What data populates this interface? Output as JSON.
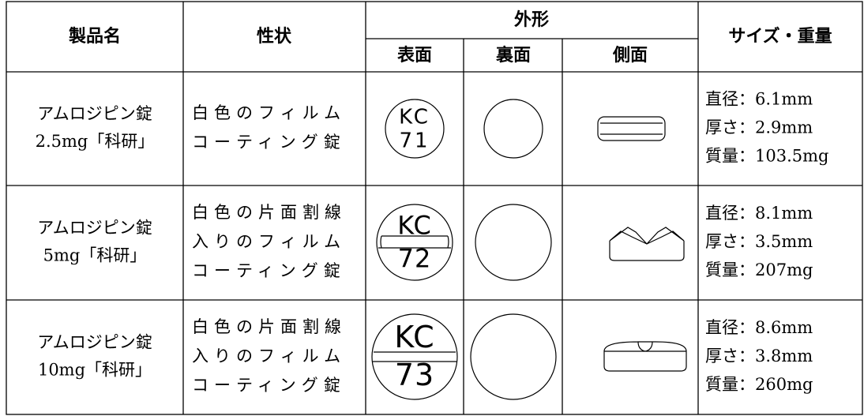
{
  "table": {
    "headers": {
      "name": "製品名",
      "property": "性状",
      "shape": "外形",
      "front": "表面",
      "back": "裏面",
      "side": "側面",
      "size": "サイズ・重量"
    },
    "rows": [
      {
        "name": [
          "アムロジピン錠",
          "2.5mg「科研」"
        ],
        "property": [
          "白色のフィルム",
          "コーティング錠"
        ],
        "mark": [
          "KC",
          "71"
        ],
        "size": [
          "直径：6.1mm",
          "厚さ：2.9mm",
          "質量：103.5mg"
        ]
      },
      {
        "name": [
          "アムロジピン錠",
          "5mg「科研」"
        ],
        "property": [
          "白色の片面割線",
          "入りのフィルム",
          "コーティング錠"
        ],
        "mark": [
          "KC",
          "72"
        ],
        "size": [
          "直径：8.1mm",
          "厚さ：3.5mm",
          "質量：207mg"
        ]
      },
      {
        "name": [
          "アムロジピン錠",
          "10mg「科研」"
        ],
        "property": [
          "白色の片面割線",
          "入りのフィルム",
          "コーティング錠"
        ],
        "mark": [
          "KC",
          "73"
        ],
        "size": [
          "直径：8.6mm",
          "厚さ：3.8mm",
          "質量：260mg"
        ]
      }
    ]
  }
}
